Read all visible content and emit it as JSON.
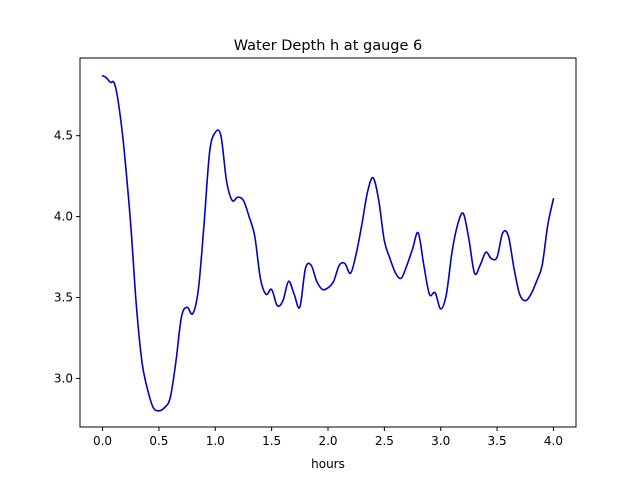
{
  "chart_data": {
    "type": "line",
    "title": "Water Depth h at gauge 6",
    "xlabel": "hours",
    "ylabel": "",
    "xlim": [
      -0.2,
      4.2
    ],
    "ylim": [
      2.7,
      4.98
    ],
    "x_ticks": [
      0.0,
      0.5,
      1.0,
      1.5,
      2.0,
      2.5,
      3.0,
      3.5,
      4.0
    ],
    "x_tick_labels": [
      "0.0",
      "0.5",
      "1.0",
      "1.5",
      "2.0",
      "2.5",
      "3.0",
      "3.5",
      "4.0"
    ],
    "y_ticks": [
      3.0,
      3.5,
      4.0,
      4.5
    ],
    "y_tick_labels": [
      "3.0",
      "3.5",
      "4.0",
      "4.5"
    ],
    "grid": false,
    "line_color": "#0000cc",
    "series": [
      {
        "name": "",
        "x": [
          0.0,
          0.03,
          0.07,
          0.1,
          0.13,
          0.17,
          0.2,
          0.25,
          0.3,
          0.35,
          0.4,
          0.45,
          0.5,
          0.55,
          0.6,
          0.65,
          0.7,
          0.75,
          0.8,
          0.85,
          0.9,
          0.95,
          1.0,
          1.05,
          1.1,
          1.15,
          1.2,
          1.25,
          1.3,
          1.35,
          1.4,
          1.45,
          1.5,
          1.55,
          1.6,
          1.65,
          1.7,
          1.75,
          1.8,
          1.85,
          1.9,
          1.95,
          2.0,
          2.05,
          2.1,
          2.15,
          2.2,
          2.25,
          2.3,
          2.35,
          2.4,
          2.45,
          2.5,
          2.55,
          2.6,
          2.65,
          2.7,
          2.75,
          2.8,
          2.85,
          2.9,
          2.95,
          3.0,
          3.05,
          3.1,
          3.15,
          3.2,
          3.25,
          3.3,
          3.35,
          3.4,
          3.45,
          3.5,
          3.55,
          3.6,
          3.65,
          3.7,
          3.75,
          3.8,
          3.85,
          3.9,
          3.95,
          4.0
        ],
        "values": [
          4.87,
          4.86,
          4.83,
          4.83,
          4.75,
          4.55,
          4.35,
          3.95,
          3.45,
          3.1,
          2.93,
          2.82,
          2.8,
          2.82,
          2.88,
          3.1,
          3.38,
          3.44,
          3.4,
          3.55,
          3.95,
          4.4,
          4.52,
          4.5,
          4.22,
          4.1,
          4.12,
          4.1,
          4.0,
          3.88,
          3.62,
          3.52,
          3.55,
          3.45,
          3.48,
          3.6,
          3.52,
          3.44,
          3.68,
          3.7,
          3.6,
          3.55,
          3.56,
          3.6,
          3.7,
          3.71,
          3.65,
          3.77,
          3.95,
          4.15,
          4.24,
          4.1,
          3.85,
          3.74,
          3.65,
          3.62,
          3.7,
          3.8,
          3.9,
          3.7,
          3.52,
          3.53,
          3.43,
          3.52,
          3.78,
          3.95,
          4.02,
          3.86,
          3.65,
          3.7,
          3.78,
          3.74,
          3.75,
          3.9,
          3.88,
          3.68,
          3.52,
          3.48,
          3.52,
          3.6,
          3.7,
          3.95,
          4.11
        ]
      }
    ]
  }
}
